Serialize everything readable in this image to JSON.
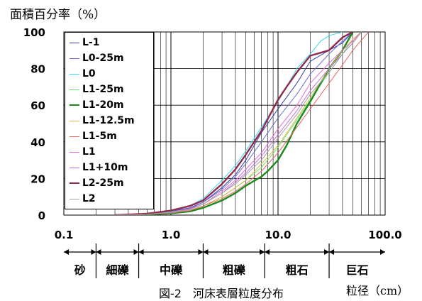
{
  "chart_data": {
    "type": "line",
    "y_axis_label": "面積百分率（%）",
    "x_axis_unit_label": "粒径（cm）",
    "caption": "図-2　河床表層粒度分布",
    "x_scale": "log",
    "xlim": [
      0.1,
      100
    ],
    "ylim": [
      0,
      100
    ],
    "x_ticks": [
      0.1,
      1,
      10,
      100
    ],
    "x_tick_labels": [
      "0.1",
      "1.0",
      "10.0",
      "100.0"
    ],
    "y_ticks": [
      0,
      20,
      40,
      60,
      80,
      100
    ],
    "y_tick_labels": [
      "0",
      "20",
      "40",
      "60",
      "80",
      "100"
    ],
    "grid": true,
    "legend_position": "top-left",
    "size_classes": [
      {
        "label": "砂",
        "from": 0.1,
        "to": 0.2
      },
      {
        "label": "細礫",
        "from": 0.2,
        "to": 0.5
      },
      {
        "label": "中礫",
        "from": 0.5,
        "to": 2
      },
      {
        "label": "粗礫",
        "from": 2,
        "to": 7.5
      },
      {
        "label": "粗石",
        "from": 7.5,
        "to": 30
      },
      {
        "label": "巨石",
        "from": 30,
        "to": 100
      }
    ],
    "series": [
      {
        "name": "L-1",
        "color": "#3a3aa8",
        "width": 1,
        "points": [
          [
            0.3,
            0
          ],
          [
            0.6,
            0.6
          ],
          [
            1,
            2
          ],
          [
            1.5,
            4
          ],
          [
            2,
            7
          ],
          [
            3,
            15
          ],
          [
            4,
            22
          ],
          [
            5,
            30
          ],
          [
            7,
            45
          ],
          [
            10,
            58
          ],
          [
            15,
            72
          ],
          [
            20,
            84
          ],
          [
            30,
            90
          ],
          [
            40,
            94
          ],
          [
            50,
            100
          ]
        ]
      },
      {
        "name": "L0-25m",
        "color": "#7070cc",
        "width": 1,
        "points": [
          [
            0.3,
            0
          ],
          [
            0.6,
            0.5
          ],
          [
            1,
            1.5
          ],
          [
            1.5,
            3.5
          ],
          [
            2,
            7
          ],
          [
            3,
            14
          ],
          [
            4,
            21
          ],
          [
            5,
            28
          ],
          [
            7,
            40
          ],
          [
            10,
            53
          ],
          [
            15,
            66
          ],
          [
            20,
            77
          ],
          [
            30,
            88
          ],
          [
            40,
            95
          ],
          [
            50,
            100
          ]
        ]
      },
      {
        "name": "L0",
        "color": "#3fd8e8",
        "width": 1,
        "points": [
          [
            0.3,
            0
          ],
          [
            0.6,
            0.6
          ],
          [
            1,
            2
          ],
          [
            1.5,
            5
          ],
          [
            2,
            9
          ],
          [
            3,
            19
          ],
          [
            4,
            27
          ],
          [
            5,
            35
          ],
          [
            7,
            48
          ],
          [
            10,
            62
          ],
          [
            12,
            70
          ],
          [
            15,
            80
          ],
          [
            20,
            88
          ],
          [
            25,
            95
          ],
          [
            30,
            98
          ],
          [
            40,
            100
          ]
        ]
      },
      {
        "name": "L1-25m",
        "color": "#70e070",
        "width": 1,
        "points": [
          [
            0.3,
            0
          ],
          [
            0.6,
            0.4
          ],
          [
            1,
            1.2
          ],
          [
            1.5,
            2.5
          ],
          [
            2,
            5
          ],
          [
            3,
            10
          ],
          [
            4,
            15
          ],
          [
            5,
            19
          ],
          [
            7,
            26
          ],
          [
            10,
            37
          ],
          [
            15,
            52
          ],
          [
            20,
            63
          ],
          [
            30,
            78
          ],
          [
            40,
            88
          ],
          [
            50,
            96
          ],
          [
            60,
            100
          ]
        ]
      },
      {
        "name": "L1-20m",
        "color": "#1a8a1a",
        "width": 2.4,
        "points": [
          [
            0.3,
            0
          ],
          [
            0.6,
            0.3
          ],
          [
            1,
            1
          ],
          [
            1.5,
            2
          ],
          [
            2,
            4
          ],
          [
            3,
            8
          ],
          [
            4,
            12
          ],
          [
            5,
            16
          ],
          [
            7,
            21
          ],
          [
            8,
            24
          ],
          [
            10,
            30
          ],
          [
            12,
            38
          ],
          [
            15,
            50
          ],
          [
            20,
            62
          ],
          [
            25,
            72
          ],
          [
            30,
            80
          ],
          [
            40,
            90
          ],
          [
            50,
            100
          ]
        ]
      },
      {
        "name": "L1-12.5m",
        "color": "#e0b850",
        "width": 1,
        "points": [
          [
            0.3,
            0
          ],
          [
            0.6,
            0.4
          ],
          [
            1,
            1.2
          ],
          [
            1.5,
            2.5
          ],
          [
            2,
            5
          ],
          [
            3,
            10
          ],
          [
            4,
            15
          ],
          [
            5,
            19
          ],
          [
            7,
            28
          ],
          [
            10,
            38
          ],
          [
            15,
            53
          ],
          [
            20,
            64
          ],
          [
            30,
            80
          ],
          [
            40,
            90
          ],
          [
            50,
            96
          ],
          [
            60,
            100
          ]
        ]
      },
      {
        "name": "L1-5m",
        "color": "#e86860",
        "width": 1,
        "points": [
          [
            0.3,
            0
          ],
          [
            0.6,
            0.4
          ],
          [
            1,
            1.2
          ],
          [
            1.5,
            2.5
          ],
          [
            2,
            5
          ],
          [
            3,
            9
          ],
          [
            4,
            13
          ],
          [
            5,
            17
          ],
          [
            7,
            24
          ],
          [
            10,
            34
          ],
          [
            15,
            48
          ],
          [
            20,
            58
          ],
          [
            30,
            72
          ],
          [
            40,
            82
          ],
          [
            50,
            90
          ],
          [
            70,
            100
          ]
        ]
      },
      {
        "name": "L1",
        "color": "#e868e0",
        "width": 1,
        "points": [
          [
            0.3,
            0
          ],
          [
            0.6,
            0.5
          ],
          [
            1,
            1.5
          ],
          [
            1.5,
            3.5
          ],
          [
            2,
            6
          ],
          [
            3,
            13
          ],
          [
            4,
            19
          ],
          [
            5,
            25
          ],
          [
            7,
            34
          ],
          [
            10,
            47
          ],
          [
            15,
            60
          ],
          [
            20,
            72
          ],
          [
            30,
            83
          ],
          [
            40,
            90
          ],
          [
            50,
            95
          ],
          [
            60,
            100
          ]
        ]
      },
      {
        "name": "L1+10m",
        "color": "#c070d8",
        "width": 1,
        "points": [
          [
            0.3,
            0
          ],
          [
            0.6,
            0.5
          ],
          [
            1,
            1.5
          ],
          [
            1.5,
            3
          ],
          [
            2,
            6
          ],
          [
            3,
            12
          ],
          [
            4,
            18
          ],
          [
            5,
            23
          ],
          [
            7,
            32
          ],
          [
            10,
            44
          ],
          [
            15,
            57
          ],
          [
            20,
            68
          ],
          [
            30,
            80
          ],
          [
            40,
            88
          ],
          [
            50,
            94
          ],
          [
            60,
            100
          ]
        ]
      },
      {
        "name": "L2-25m",
        "color": "#8e2a4e",
        "width": 2.4,
        "points": [
          [
            0.3,
            0
          ],
          [
            0.6,
            0.8
          ],
          [
            1,
            2.5
          ],
          [
            1.5,
            5
          ],
          [
            2,
            8
          ],
          [
            3,
            17
          ],
          [
            4,
            25
          ],
          [
            5,
            33
          ],
          [
            7,
            46
          ],
          [
            9,
            58
          ],
          [
            10,
            63
          ],
          [
            12,
            70
          ],
          [
            15,
            78
          ],
          [
            20,
            87
          ],
          [
            30,
            90
          ],
          [
            40,
            97
          ],
          [
            50,
            100
          ]
        ]
      },
      {
        "name": "L2",
        "color": "#a0a0a0",
        "width": 1,
        "points": [
          [
            0.3,
            0
          ],
          [
            0.6,
            0.5
          ],
          [
            1,
            1.5
          ],
          [
            1.5,
            3.2
          ],
          [
            2,
            6
          ],
          [
            3,
            12
          ],
          [
            4,
            17
          ],
          [
            5,
            22
          ],
          [
            7,
            30
          ],
          [
            10,
            42
          ],
          [
            15,
            55
          ],
          [
            20,
            66
          ],
          [
            30,
            78
          ],
          [
            40,
            88
          ],
          [
            50,
            94
          ],
          [
            60,
            100
          ]
        ]
      }
    ]
  }
}
